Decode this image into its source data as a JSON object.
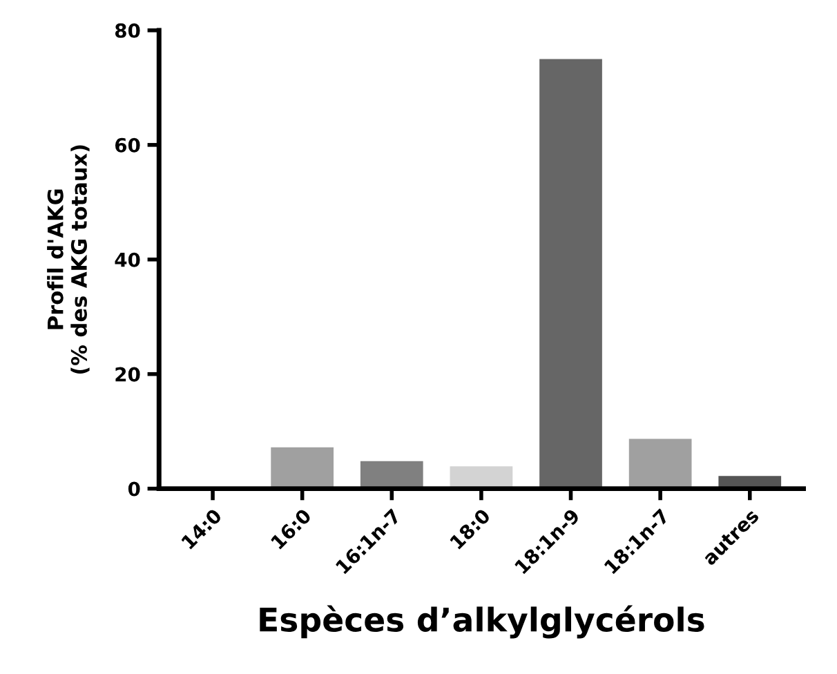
{
  "chart_data": {
    "type": "bar",
    "xlabel": "Espèces d’alkylglycérols",
    "ylabel": "Profil d'AKG\n(% des AKG totaux)",
    "categories": [
      "14:0",
      "16:0",
      "16:1n-7",
      "18:0",
      "18:1n-9",
      "18:1n-7",
      "autres"
    ],
    "values": [
      0,
      7.2,
      4.8,
      3.9,
      75,
      8.7,
      2.2
    ],
    "colors": [
      "#808080",
      "#a0a0a0",
      "#808080",
      "#d3d3d3",
      "#666666",
      "#a0a0a0",
      "#555555"
    ],
    "ylim": [
      0,
      80
    ],
    "yticks": [
      0,
      20,
      40,
      60,
      80
    ],
    "grid": false
  }
}
